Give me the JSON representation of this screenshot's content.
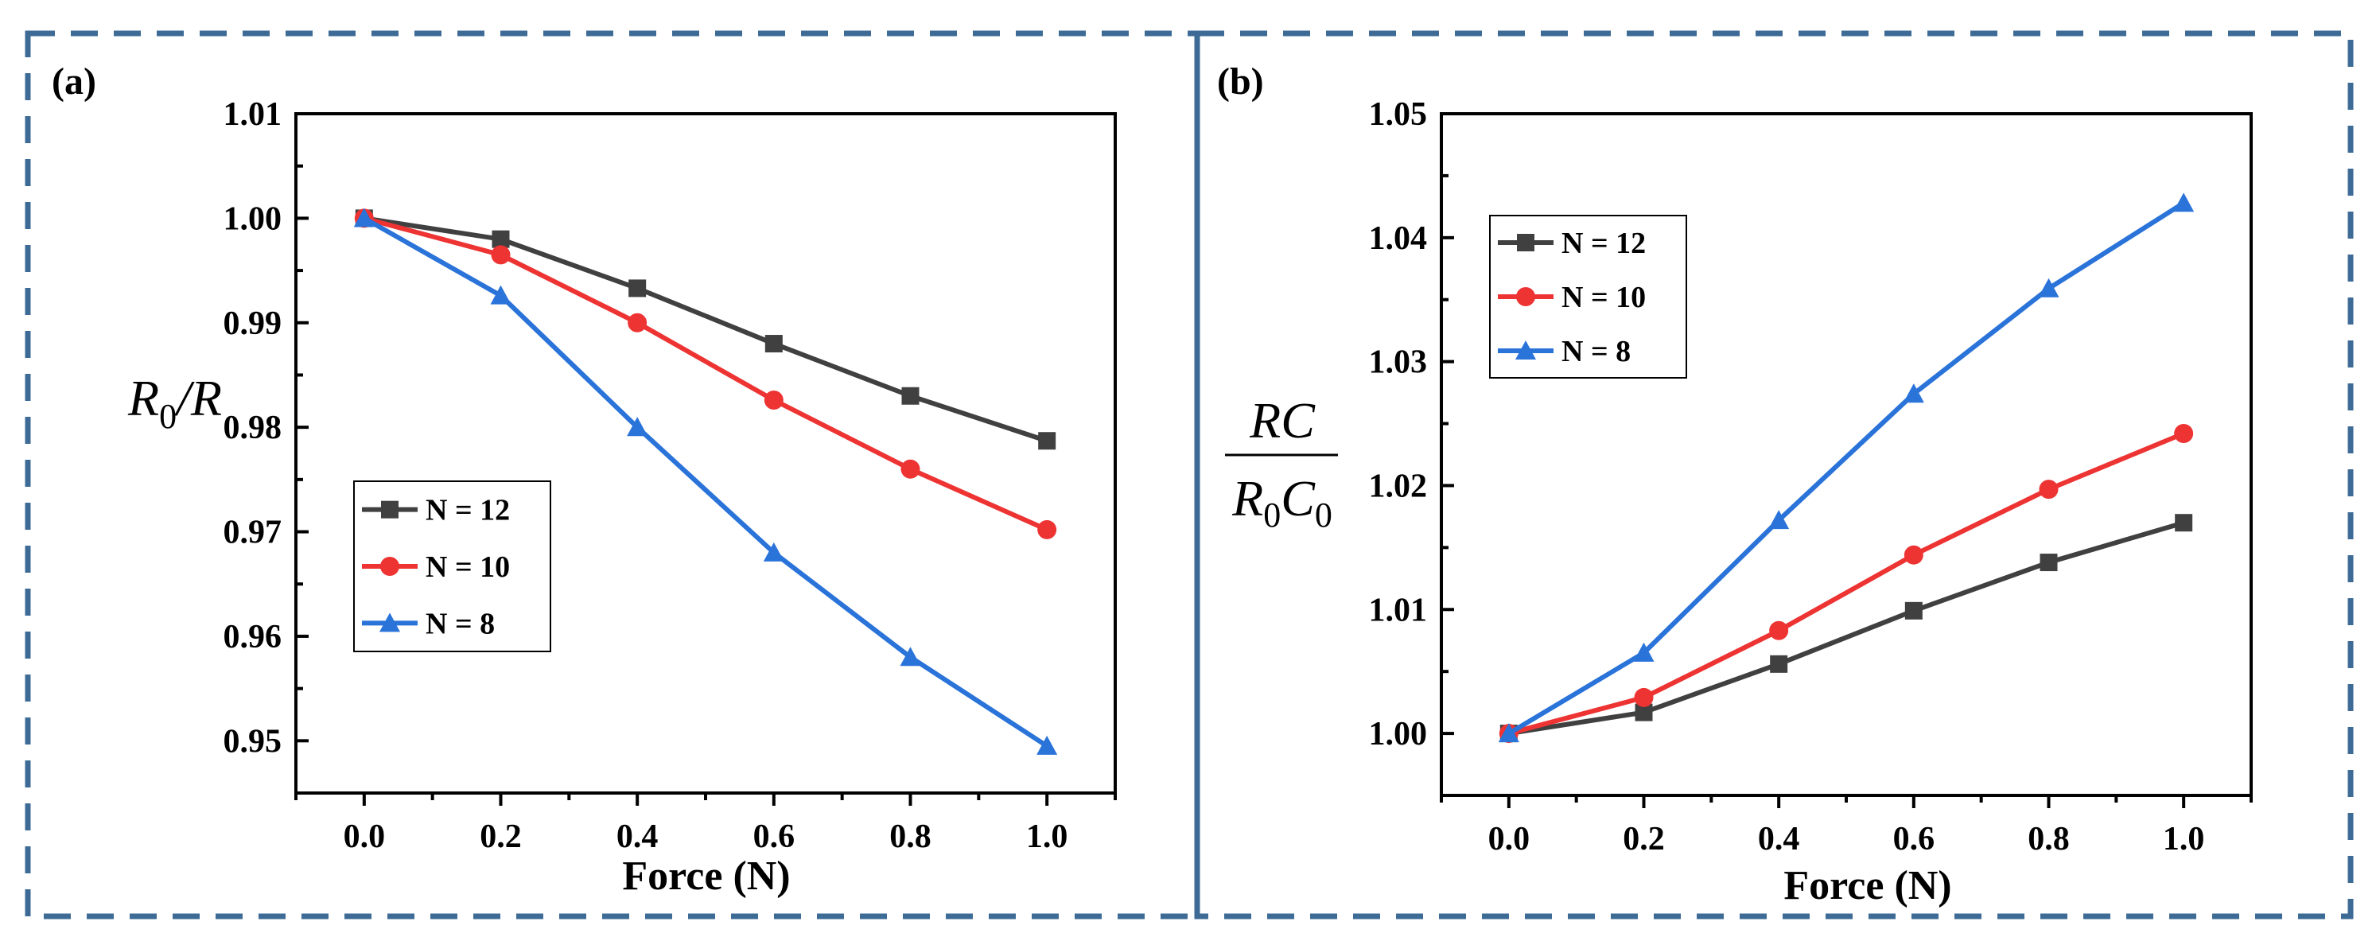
{
  "figure": {
    "frame_color": "#3d6b96"
  },
  "chart_data": [
    {
      "panel_label": "(a)",
      "type": "line",
      "x": [
        0.0,
        0.2,
        0.4,
        0.6,
        0.8,
        1.0
      ],
      "xlabel": "Force (N)",
      "ylabel": "R0/R",
      "ylabel_parts": {
        "main1": "R",
        "sub": "0",
        "main2": "/R"
      },
      "xlim": [
        -0.1,
        1.1
      ],
      "ylim": [
        0.945,
        1.01
      ],
      "xticks": [
        0.0,
        0.2,
        0.4,
        0.6,
        0.8,
        1.0
      ],
      "xtick_labels": [
        "0.0",
        "0.2",
        "0.4",
        "0.6",
        "0.8",
        "1.0"
      ],
      "yticks": [
        0.95,
        0.96,
        0.97,
        0.98,
        0.99,
        1.0,
        1.01
      ],
      "ytick_labels": [
        "0.95",
        "0.96",
        "0.97",
        "0.98",
        "0.99",
        "1.00",
        "1.01"
      ],
      "legend_position": "bottom-left",
      "series": [
        {
          "name": "N = 12",
          "color": "#404040",
          "marker": "square",
          "values": [
            1.0,
            0.998,
            0.9933,
            0.988,
            0.983,
            0.9787
          ]
        },
        {
          "name": "N = 10",
          "color": "#ee3333",
          "marker": "circle",
          "values": [
            1.0,
            0.9965,
            0.99,
            0.9826,
            0.976,
            0.9702
          ]
        },
        {
          "name": "N = 8",
          "color": "#2a73d9",
          "marker": "triangle",
          "values": [
            1.0,
            0.9926,
            0.98,
            0.968,
            0.958,
            0.9495
          ]
        }
      ]
    },
    {
      "panel_label": "(b)",
      "type": "line",
      "x": [
        0.0,
        0.2,
        0.4,
        0.6,
        0.8,
        1.0
      ],
      "xlabel": "Force (N)",
      "ylabel": "RC / R0C0",
      "ylabel_parts": {
        "num": "RC",
        "den1": "R",
        "den_sub1": "0",
        "den2": "C",
        "den_sub2": "0"
      },
      "xlim": [
        -0.1,
        1.1
      ],
      "ylim": [
        0.995,
        1.05
      ],
      "xticks": [
        0.0,
        0.2,
        0.4,
        0.6,
        0.8,
        1.0
      ],
      "xtick_labels": [
        "0.0",
        "0.2",
        "0.4",
        "0.6",
        "0.8",
        "1.0"
      ],
      "yticks": [
        1.0,
        1.01,
        1.02,
        1.03,
        1.04,
        1.05
      ],
      "ytick_labels": [
        "1.00",
        "1.01",
        "1.02",
        "1.03",
        "1.04",
        "1.05"
      ],
      "legend_position": "top-left",
      "series": [
        {
          "name": "N = 12",
          "color": "#404040",
          "marker": "square",
          "values": [
            1.0,
            1.0017,
            1.0056,
            1.0099,
            1.0138,
            1.017
          ]
        },
        {
          "name": "N = 10",
          "color": "#ee3333",
          "marker": "circle",
          "values": [
            1.0,
            1.0029,
            1.0083,
            1.0144,
            1.0197,
            1.0242
          ]
        },
        {
          "name": "N = 8",
          "color": "#2a73d9",
          "marker": "triangle",
          "values": [
            1.0,
            1.0065,
            1.0172,
            1.0274,
            1.0359,
            1.0428
          ]
        }
      ]
    }
  ]
}
